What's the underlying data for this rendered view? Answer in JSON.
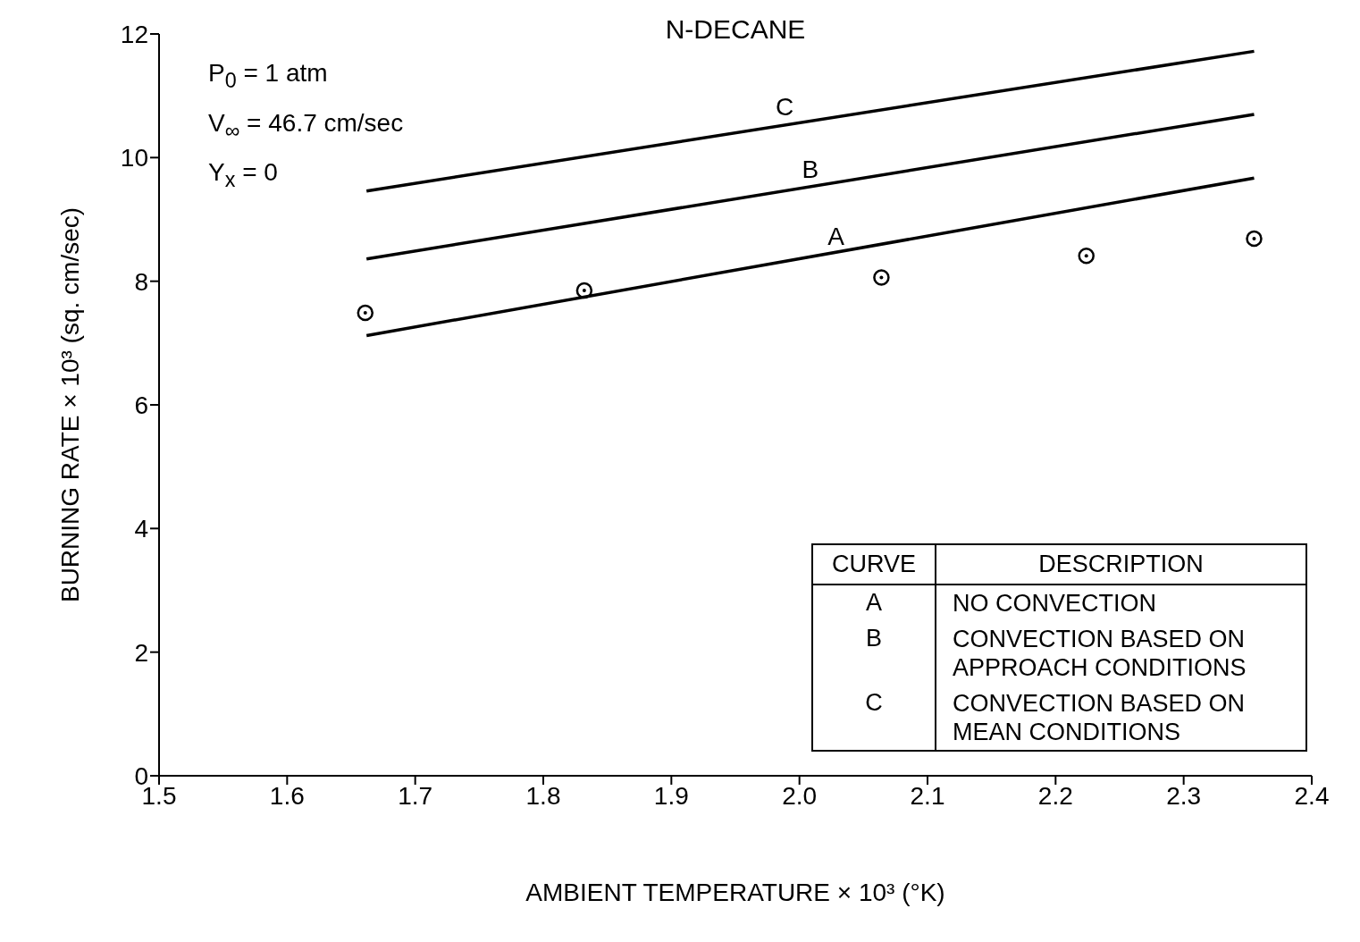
{
  "chart_data": {
    "type": "line",
    "title": "N-DECANE",
    "xlabel": "AMBIENT TEMPERATURE × 10³ (°K)",
    "ylabel": "BURNING RATE × 10³ (sq. cm/sec)",
    "xlim": [
      1.5,
      2.4
    ],
    "xticks": [
      1.5,
      1.6,
      1.7,
      1.8,
      1.9,
      {
        "value": 2.0,
        "label": "2.0"
      },
      2.1,
      2.2,
      2.3,
      2.4
    ],
    "ylim": [
      0,
      12
    ],
    "yticks": [
      0,
      2,
      4,
      6,
      8,
      10,
      12
    ],
    "series": [
      {
        "name": "A",
        "color": "#000000",
        "x": [
          1.662,
          2.355
        ],
        "values": [
          7.12,
          9.67
        ]
      },
      {
        "name": "B",
        "color": "#000000",
        "x": [
          1.662,
          2.355
        ],
        "values": [
          8.36,
          10.7
        ]
      },
      {
        "name": "C",
        "color": "#000000",
        "x": [
          1.662,
          2.355
        ],
        "values": [
          9.46,
          11.72
        ]
      },
      {
        "type": "scatter",
        "color": "#000000",
        "marker": "circle",
        "x": [
          1.661,
          1.832,
          2.064,
          2.224,
          2.355
        ],
        "values": [
          7.49,
          7.85,
          8.06,
          8.41,
          8.69
        ]
      }
    ],
    "annotations": [
      "P$_{0}$ = 1 atm",
      "V$_{∞}$ = 46.7 cm/sec",
      "Y$_{x}$ = 0",
      "CURVE",
      "DESCRIPTION",
      "NO CONVECTION",
      "CONVECTION BASED ON APPROACH CONDITIONS",
      "CONVECTION BASED ON MEAN CONDITIONS"
    ]
  }
}
